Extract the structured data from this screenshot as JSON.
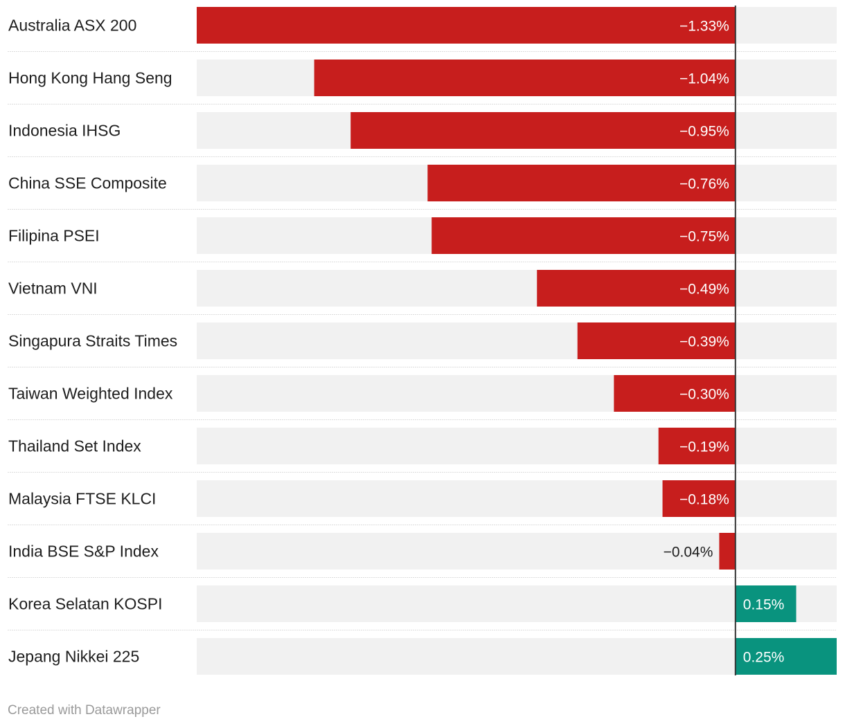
{
  "chart_data": {
    "type": "bar",
    "orientation": "horizontal",
    "categories": [
      "Australia ASX 200",
      "Hong Kong Hang Seng",
      "Indonesia IHSG",
      "China SSE Composite",
      "Filipina PSEI",
      "Vietnam VNI",
      "Singapura Straits Times",
      "Taiwan Weighted Index",
      "Thailand Set Index",
      "Malaysia FTSE KLCI",
      "India BSE S&P Index",
      "Korea Selatan KOSPI",
      "Jepang Nikkei 225"
    ],
    "values": [
      -1.33,
      -1.04,
      -0.95,
      -0.76,
      -0.75,
      -0.49,
      -0.39,
      -0.3,
      -0.19,
      -0.18,
      -0.04,
      0.15,
      0.25
    ],
    "value_labels": [
      "−1.33%",
      "−1.04%",
      "−0.95%",
      "−0.76%",
      "−0.75%",
      "−0.49%",
      "−0.39%",
      "−0.30%",
      "−0.19%",
      "−0.18%",
      "−0.04%",
      "0.15%",
      "0.25%"
    ],
    "xlim": [
      -1.33,
      0.25
    ],
    "colors": {
      "negative": "#c71e1d",
      "positive": "#09937e",
      "track": "#f1f1f1",
      "separator": "#dddddd",
      "zero_line": "#333333"
    }
  },
  "footer": {
    "credit": "Created with Datawrapper"
  }
}
